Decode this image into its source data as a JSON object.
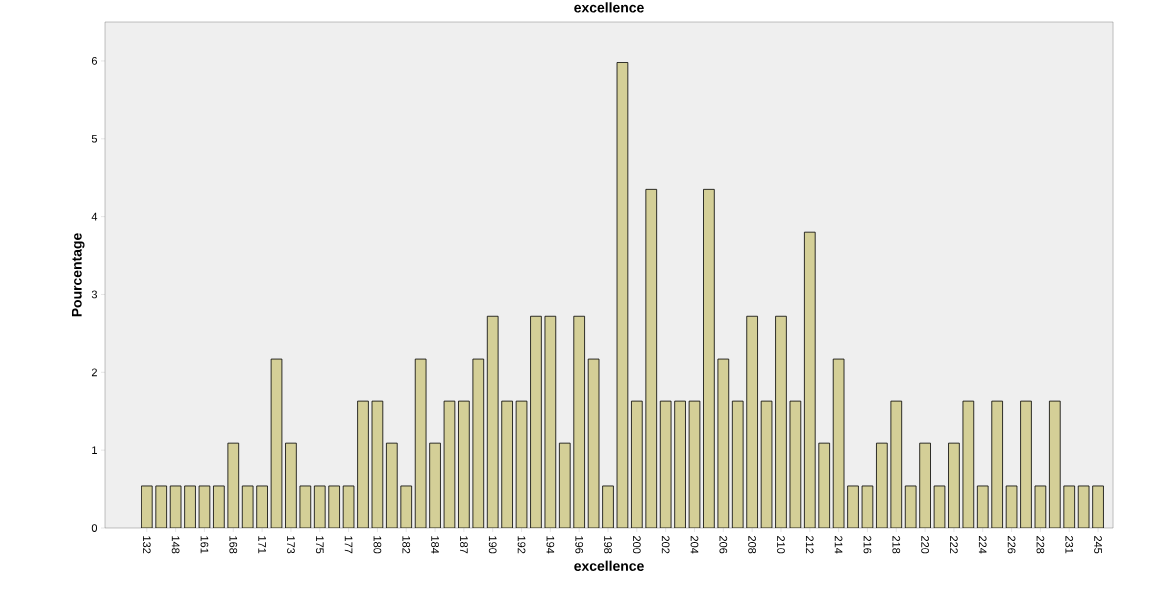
{
  "chart_data": {
    "type": "bar",
    "title": "excellence",
    "xlabel": "excellence",
    "ylabel": "Pourcentage",
    "categories": [
      "132",
      null,
      "148",
      null,
      "161",
      null,
      "168",
      null,
      "171",
      null,
      "173",
      null,
      "175",
      null,
      "177",
      null,
      "180",
      null,
      "182",
      null,
      "184",
      null,
      "187",
      null,
      "190",
      null,
      "192",
      null,
      "194",
      null,
      "196",
      null,
      "198",
      null,
      "200",
      null,
      "202",
      null,
      "204",
      null,
      "206",
      null,
      "208",
      null,
      "210",
      null,
      "212",
      null,
      "214",
      null,
      "216",
      null,
      "218",
      null,
      "220",
      null,
      "222",
      null,
      "224",
      null,
      "226",
      null,
      "228",
      null,
      "231",
      null,
      "245"
    ],
    "values": [
      0.54,
      0.54,
      0.54,
      0.54,
      0.54,
      0.54,
      1.09,
      0.54,
      0.54,
      2.17,
      1.09,
      0.54,
      0.54,
      0.54,
      0.54,
      1.63,
      1.63,
      1.09,
      0.54,
      2.17,
      1.09,
      1.63,
      1.63,
      2.17,
      2.72,
      1.63,
      1.63,
      2.72,
      2.72,
      1.09,
      2.72,
      2.17,
      0.54,
      5.98,
      1.63,
      4.35,
      1.63,
      1.63,
      1.63,
      4.35,
      2.17,
      1.63,
      2.72,
      1.63,
      2.72,
      1.63,
      3.8,
      1.09,
      2.17,
      0.54,
      0.54,
      1.09,
      1.63,
      0.54,
      1.09,
      0.54,
      1.09,
      1.63,
      0.54,
      1.63,
      0.54,
      1.63,
      0.54,
      1.63,
      0.54,
      0.54,
      0.54
    ],
    "color": "#d4cf97",
    "ylim": [
      0,
      6.5
    ],
    "yticks": [
      0,
      1,
      2,
      3,
      4,
      5,
      6
    ]
  }
}
